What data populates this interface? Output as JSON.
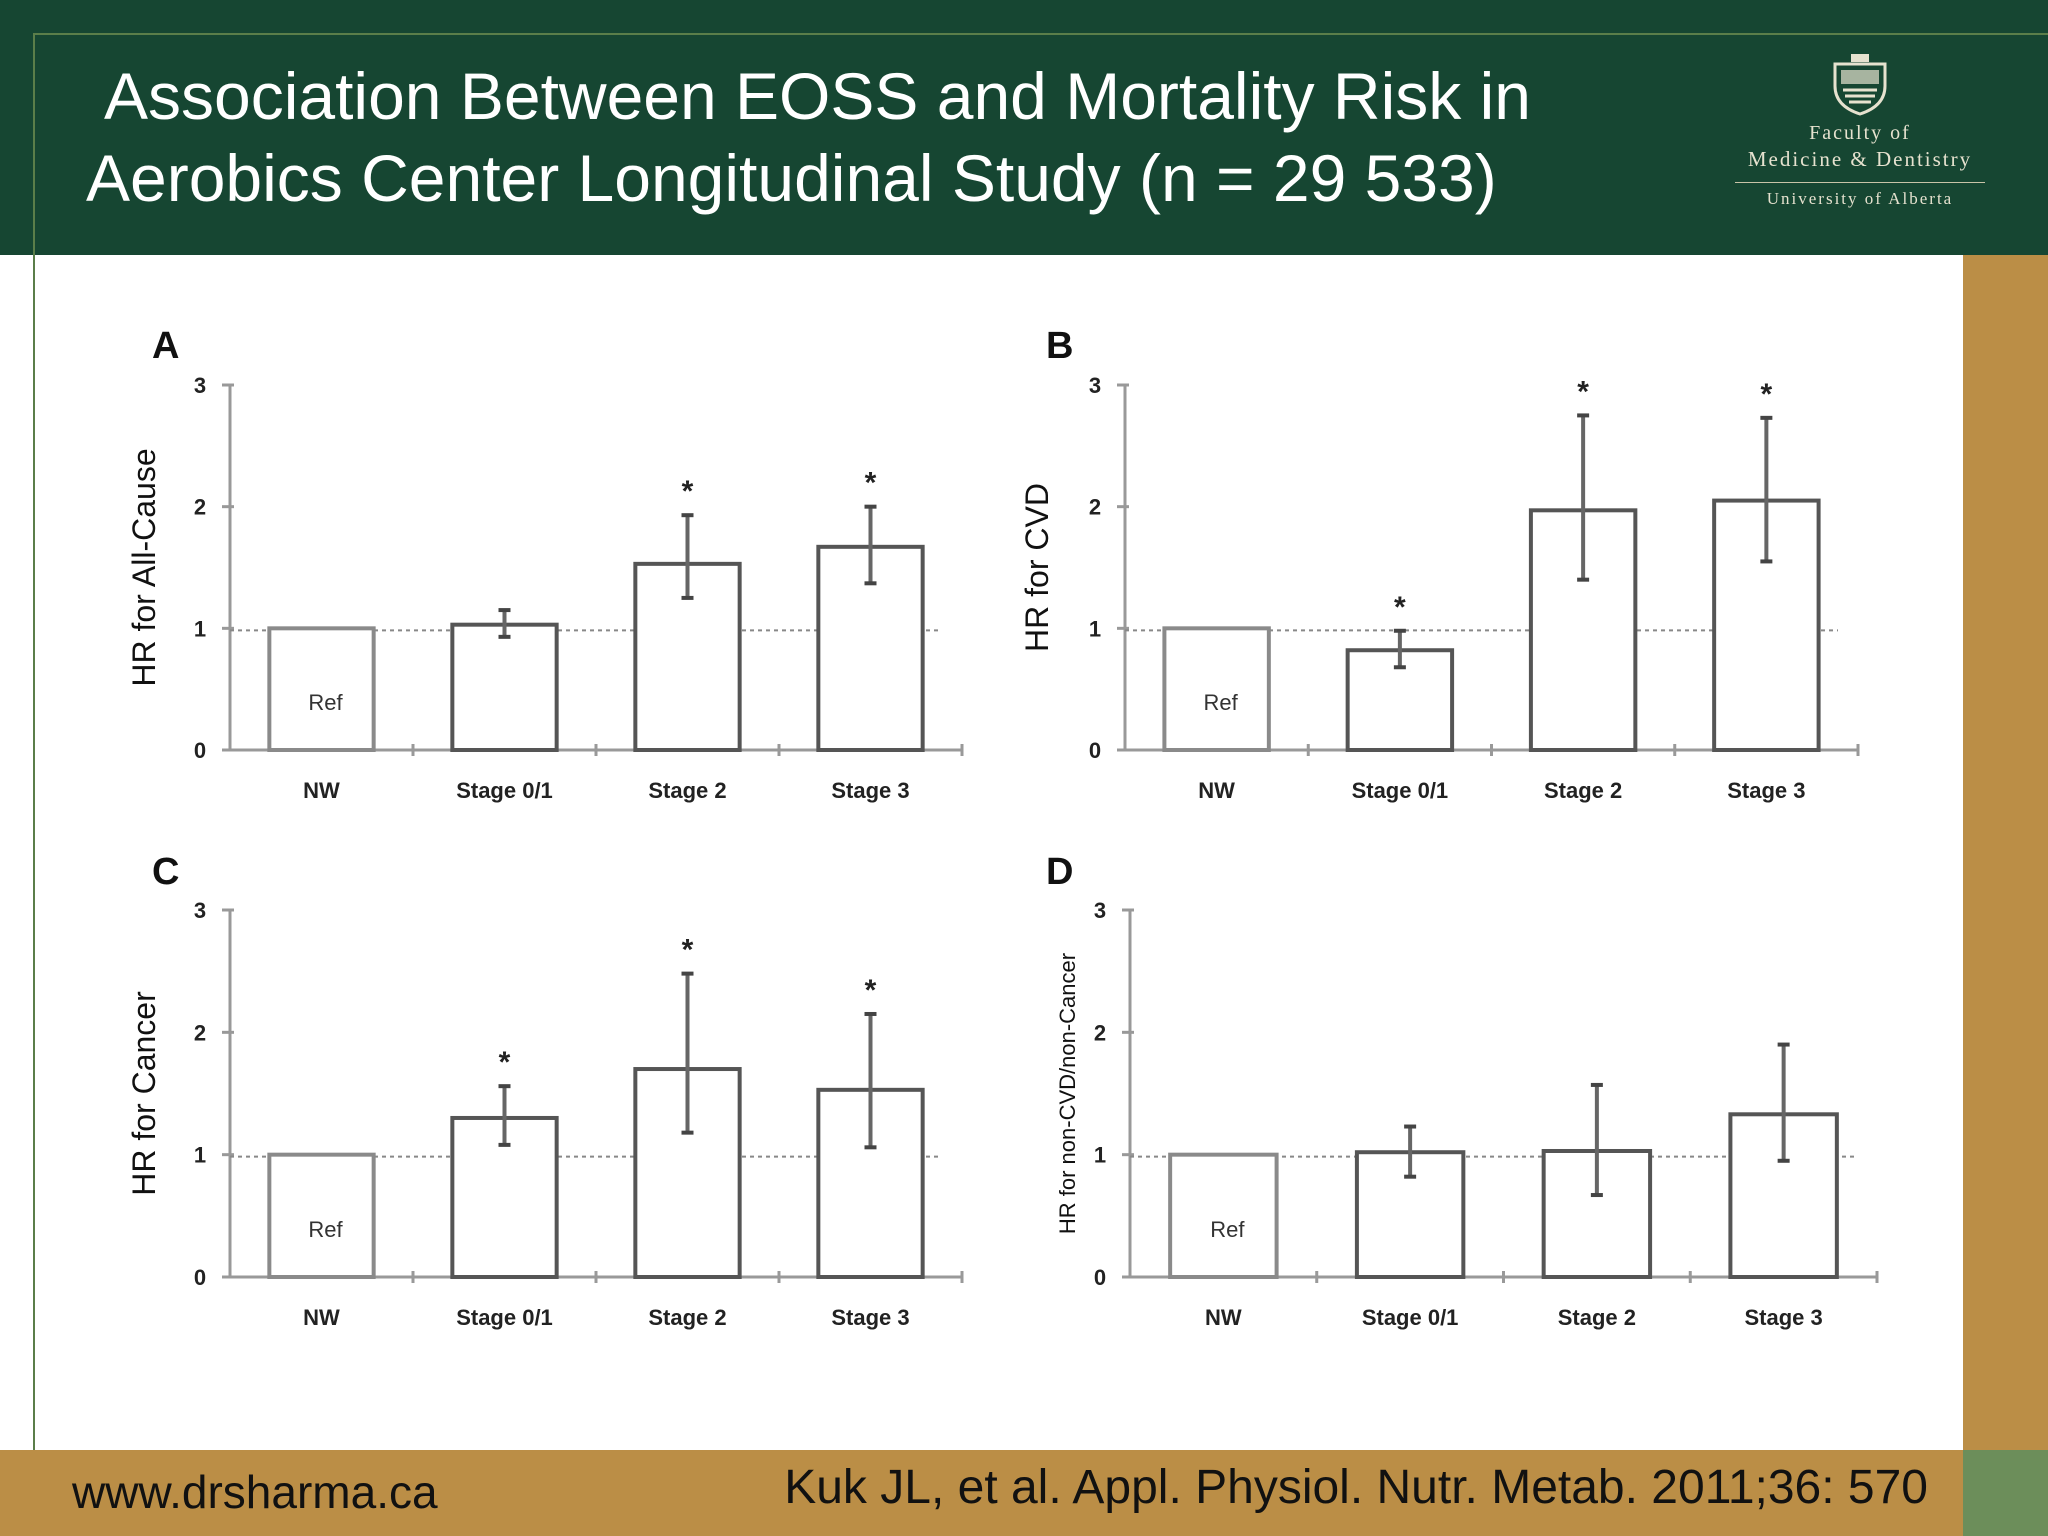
{
  "slide": {
    "title_line1": "Association Between EOSS and Mortality Risk in",
    "title_line2": "Aerobics Center Longitudinal Study (n = 29 533)",
    "logo": {
      "line1": "Faculty of",
      "line2": "Medicine & Dentistry",
      "line3": "University of Alberta"
    },
    "footer_left": "www.drsharma.ca",
    "footer_right": "Kuk JL, et al. Appl. Physiol. Nutr. Metab. 2011;36: 570"
  },
  "colors": {
    "header_green": "#164632",
    "gold": "#bb8e46"
  },
  "chart_data": [
    {
      "type": "bar",
      "panel": "A",
      "ylabel": "HR for All-Cause",
      "categories": [
        "NW",
        "Stage 0/1",
        "Stage 2",
        "Stage 3"
      ],
      "values": [
        1.0,
        1.03,
        1.53,
        1.67
      ],
      "err_low": [
        1.0,
        0.93,
        1.25,
        1.37
      ],
      "err_high": [
        1.0,
        1.15,
        1.93,
        2.0
      ],
      "significant": [
        false,
        false,
        true,
        true
      ],
      "ref_label": "Ref",
      "sig_marker": "*",
      "yticks": [
        "0",
        "1",
        "2",
        "3"
      ],
      "ylim": [
        0,
        3
      ],
      "reference_line": 1
    },
    {
      "type": "bar",
      "panel": "B",
      "ylabel": "HR for CVD",
      "categories": [
        "NW",
        "Stage 0/1",
        "Stage 2",
        "Stage 3"
      ],
      "values": [
        1.0,
        0.82,
        1.97,
        2.05
      ],
      "err_low": [
        1.0,
        0.68,
        1.4,
        1.55
      ],
      "err_high": [
        1.0,
        0.98,
        2.75,
        2.73
      ],
      "significant": [
        false,
        true,
        true,
        true
      ],
      "ref_label": "Ref",
      "sig_marker": "*",
      "yticks": [
        "0",
        "1",
        "2",
        "3"
      ],
      "ylim": [
        0,
        3
      ],
      "reference_line": 1
    },
    {
      "type": "bar",
      "panel": "C",
      "ylabel": "HR for Cancer",
      "categories": [
        "NW",
        "Stage 0/1",
        "Stage 2",
        "Stage 3"
      ],
      "values": [
        1.0,
        1.3,
        1.7,
        1.53
      ],
      "err_low": [
        1.0,
        1.08,
        1.18,
        1.06
      ],
      "err_high": [
        1.0,
        1.56,
        2.48,
        2.15
      ],
      "significant": [
        false,
        true,
        true,
        true
      ],
      "ref_label": "Ref",
      "sig_marker": "*",
      "yticks": [
        "0",
        "1",
        "2",
        "3"
      ],
      "ylim": [
        0,
        3
      ],
      "reference_line": 1
    },
    {
      "type": "bar",
      "panel": "D",
      "ylabel": "HR for non-CVD/non-Cancer",
      "categories": [
        "NW",
        "Stage 0/1",
        "Stage 2",
        "Stage 3"
      ],
      "values": [
        1.0,
        1.02,
        1.03,
        1.33
      ],
      "err_low": [
        1.0,
        0.82,
        0.67,
        0.95
      ],
      "err_high": [
        1.0,
        1.23,
        1.57,
        1.9
      ],
      "significant": [
        false,
        false,
        false,
        false
      ],
      "ref_label": "Ref",
      "sig_marker": "*",
      "yticks": [
        "0",
        "1",
        "2",
        "3"
      ],
      "ylim": [
        0,
        3
      ],
      "reference_line": 1
    }
  ]
}
